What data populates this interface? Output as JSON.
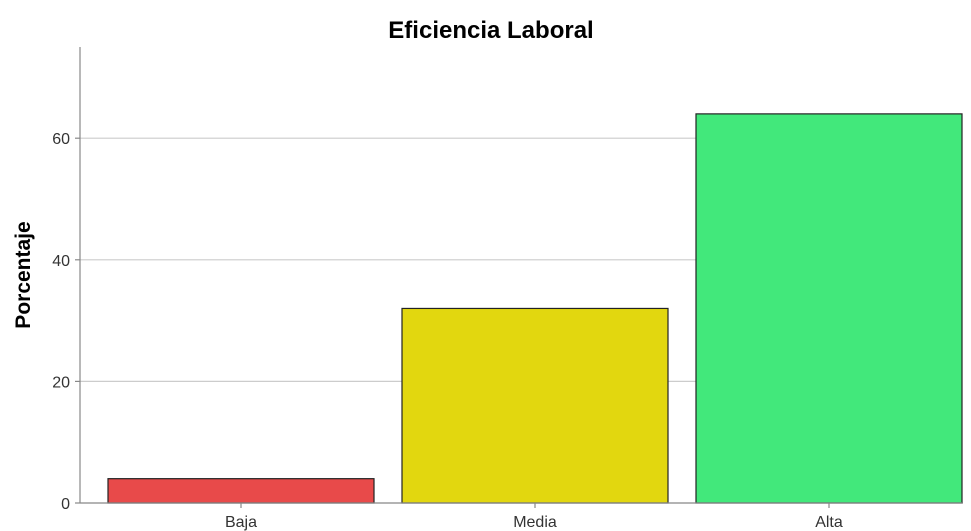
{
  "chart_data": {
    "type": "bar",
    "title": "Eficiencia Laboral",
    "xlabel": "",
    "ylabel": "Porcentaje",
    "categories": [
      "Baja",
      "Media",
      "Alta"
    ],
    "values": [
      4,
      32,
      64
    ],
    "colors": [
      "#e84a4a",
      "#e2d70f",
      "#42e87b"
    ],
    "ylim": [
      0,
      75
    ],
    "yticks": [
      0,
      20,
      40,
      60
    ],
    "ytick_labels": [
      "0",
      "20",
      "40",
      "60"
    ],
    "grid": true,
    "legend": "none"
  }
}
